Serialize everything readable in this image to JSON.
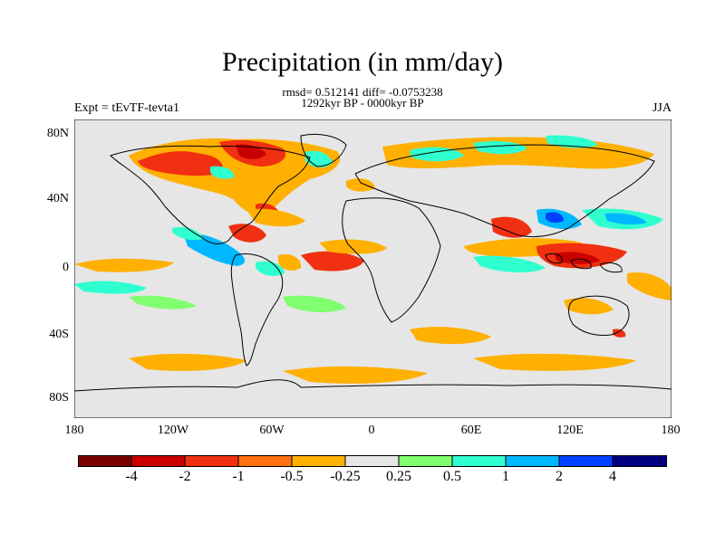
{
  "title": "Precipitation (in mm/day)",
  "stats": "rmsd= 0.512141 diff= -0.0753238",
  "period": "1292kyr BP - 0000kyr BP",
  "experiment": "Expt = tEvTF-tevta1",
  "season": "JJA",
  "lat_labels": [
    "80N",
    "40N",
    "0",
    "40S",
    "80S"
  ],
  "lon_labels": [
    "180",
    "120W",
    "60W",
    "0",
    "60E",
    "120E",
    "180"
  ],
  "colorbar": {
    "labels": [
      "-4",
      "-2",
      "-1",
      "-0.5",
      "-0.25",
      "0.25",
      "0.5",
      "1",
      "2",
      "4"
    ],
    "colors": [
      "#7a0000",
      "#c80000",
      "#f03010",
      "#ff7010",
      "#ffb000",
      "#e6e6e6",
      "#80ff70",
      "#30ffd0",
      "#00b8ff",
      "#0040ff",
      "#000080"
    ]
  },
  "colors": {
    "neutral": "#e6e6e6",
    "dry_strong": "#c80000",
    "dry": "#f03010",
    "dry_mod": "#ff7010",
    "dry_weak": "#ffb000",
    "wet_weak": "#80ff70",
    "wet_mod": "#30ffd0",
    "wet": "#00b8ff",
    "wet_strong": "#0040ff",
    "wet_max": "#000080"
  }
}
